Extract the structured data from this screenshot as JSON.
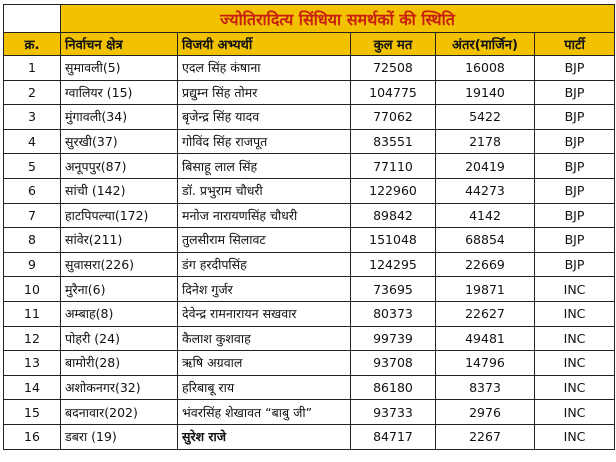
{
  "title": "ज्योतिरादित्य सिंधिया समर्थकों की स्थिति",
  "headers": [
    "क्र.",
    "निर्वाचन क्षेत्र",
    "विजयी अभ्यर्थी",
    "कुल मत",
    "अंतर(मार्जिन)",
    "पार्टी"
  ],
  "rows": [
    [
      "1",
      "सुमावली(5)",
      "एदल सिंह कंषाना",
      "72508",
      "16008",
      "BJP"
    ],
    [
      "2",
      "ग्वालियर (15)",
      "प्रद्युम्न सिंह तोमर",
      "104775",
      "19140",
      "BJP"
    ],
    [
      "3",
      "मुंगावली(34)",
      "बृजेन्द्र सिंह यादव",
      "77062",
      "5422",
      "BJP"
    ],
    [
      "4",
      "सुरखी(37)",
      "गोविंद सिंह राजपूत",
      "83551",
      "2178",
      "BJP"
    ],
    [
      "5",
      "अनूपपुर(87)",
      "बिसाहू लाल सिंह",
      "77110",
      "20419",
      "BJP"
    ],
    [
      "6",
      "सांची (142)",
      "डॉ. प्रभुराम चौधरी",
      "122960",
      "44273",
      "BJP"
    ],
    [
      "7",
      "हाटपिपल्या(172)",
      "मनोज नारायणसिंह चौधरी",
      "89842",
      "4142",
      "BJP"
    ],
    [
      "8",
      "सांवेर(211)",
      "तुलसीराम सिलावट",
      "151048",
      "68854",
      "BJP"
    ],
    [
      "9",
      "सुवासरा(226)",
      "डंग हरदीपसिंह",
      "124295",
      "22669",
      "BJP"
    ],
    [
      "10",
      "मुरैना(6)",
      "दिनेश गुर्जर",
      "73695",
      "19871",
      "INC"
    ],
    [
      "11",
      "अम्बाह(8)",
      "देवेन्द्र रामनारायन सखवार",
      "80373",
      "22627",
      "INC"
    ],
    [
      "12",
      "पोहरी (24)",
      "कैलाश कुशवाह",
      "99739",
      "49481",
      "INC"
    ],
    [
      "13",
      "बामोरी(28)",
      "ऋषि अग्रवाल",
      "93708",
      "14796",
      "INC"
    ],
    [
      "14",
      "अशोकनगर(32)",
      "हरिबाबू राय",
      "86180",
      "8373",
      "INC"
    ],
    [
      "15",
      "बदनावार(202)",
      "भंवरसिंह शेखावत “बाबु जी”",
      "93733",
      "2976",
      "INC"
    ],
    [
      "16",
      "डबरा (19)",
      "सुरेश राजे",
      "84717",
      "2267",
      "INC"
    ]
  ],
  "colors": {
    "header_bg": "#f2c200",
    "title_text": "#c81e12"
  }
}
